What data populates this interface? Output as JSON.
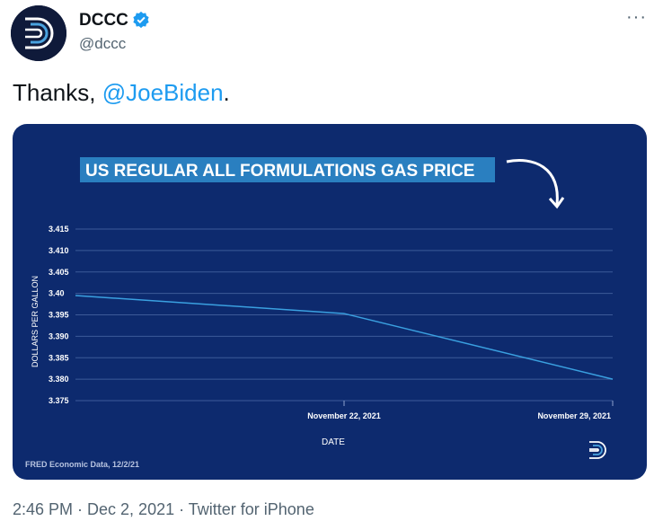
{
  "account": {
    "name": "DCCC",
    "handle": "@dccc",
    "verified": true,
    "avatar_icon": "dccc-logo-icon"
  },
  "tweet": {
    "text_prefix": "Thanks, ",
    "mention": "@JoeBiden",
    "text_suffix": ".",
    "timestamp": "2:46 PM · Dec 2, 2021 · Twitter for iPhone"
  },
  "colors": {
    "card_bg": "#0d2a6e",
    "title_bg": "#2a7fc0",
    "line": "#3aa0e0",
    "mention": "#1d9bf0"
  },
  "chart_data": {
    "type": "line",
    "title": "US REGULAR ALL FORMULATIONS GAS PRICE",
    "xlabel": "DATE",
    "ylabel": "DOLLARS PER GALLON",
    "source": "FRED Economic Data, 12/2/21",
    "x": [
      "2021-11-15",
      "2021-11-22",
      "2021-11-29"
    ],
    "x_tick_labels": [
      "November 22, 2021",
      "November 29, 2021"
    ],
    "y_tick_labels": [
      "3.415",
      "3.410",
      "3.405",
      "3.40",
      "3.395",
      "3.390",
      "3.385",
      "3.380",
      "3.375"
    ],
    "ylim": [
      3.375,
      3.415
    ],
    "series": [
      {
        "values": [
          3.3995,
          3.3953,
          3.38
        ]
      }
    ],
    "grid": true
  }
}
